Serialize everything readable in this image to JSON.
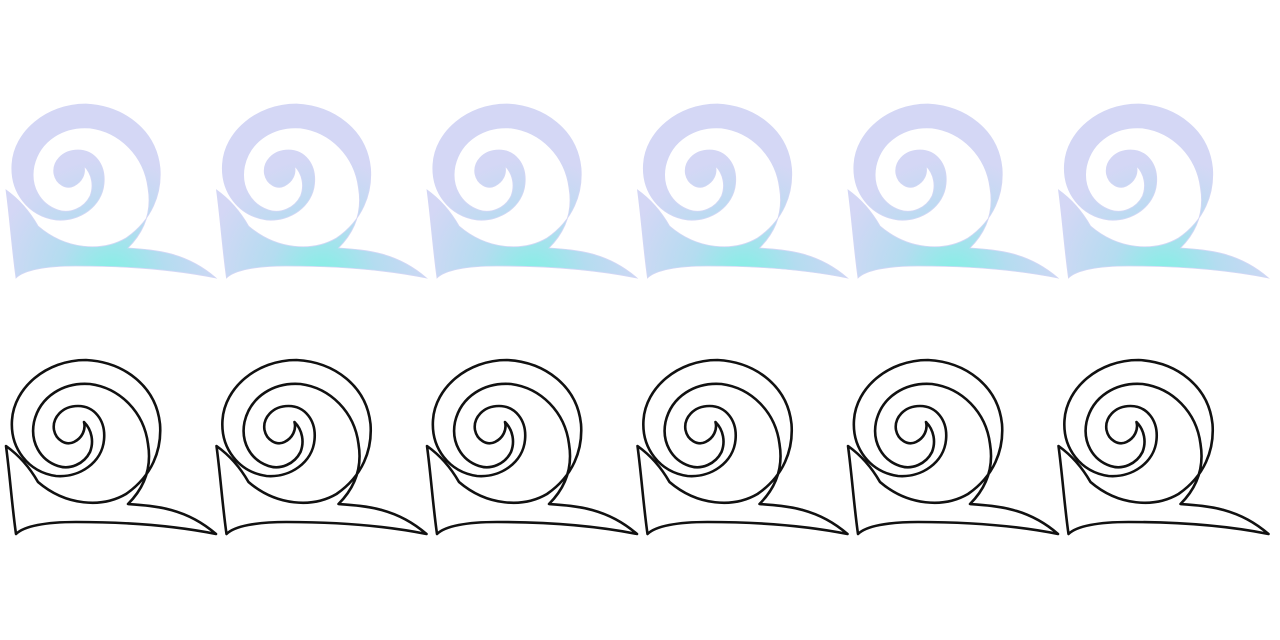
{
  "bands": [
    {
      "name": "colored-wave-band",
      "style": "gradient-fill",
      "wave_count": 6
    },
    {
      "name": "outline-wave-band",
      "style": "black-outline",
      "wave_count": 6
    }
  ],
  "colors": {
    "background": "#ffffff",
    "wave_outer": "#d4d7f5",
    "wave_mid": "#b4dcf0",
    "wave_core": "#7ff2e4",
    "outline": "#111111"
  }
}
